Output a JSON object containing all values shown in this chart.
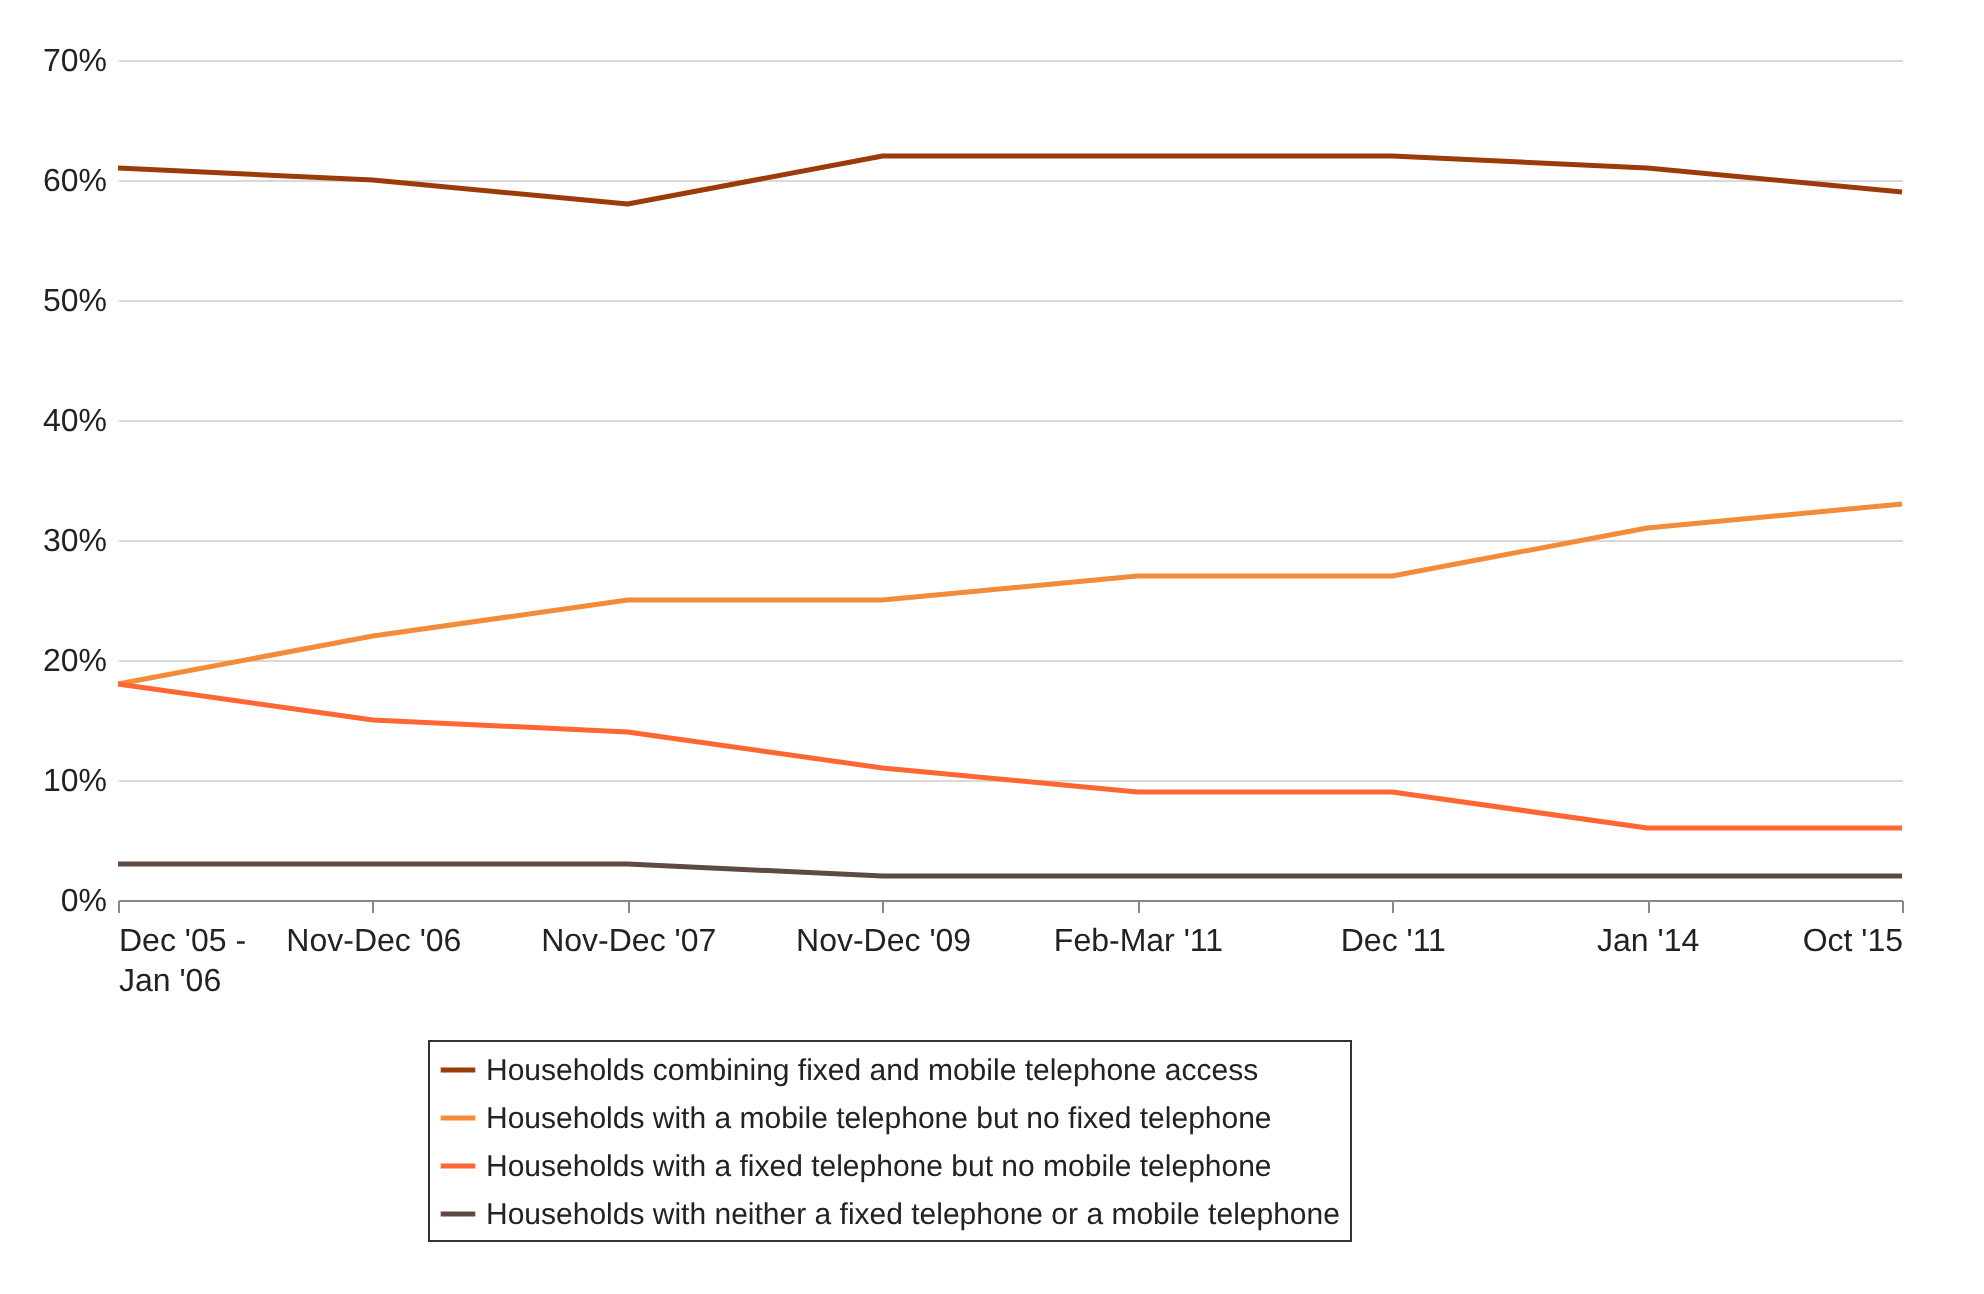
{
  "chart_data": {
    "type": "line",
    "categories": [
      "Dec '05 - Jan '06",
      "Nov-Dec '06",
      "Nov-Dec '07",
      "Nov-Dec '09",
      "Feb-Mar '11",
      "Dec '11",
      "Jan '14",
      "Oct '15"
    ],
    "series": [
      {
        "name": "Households combining fixed and mobile telephone access",
        "color": "#9c3b0a",
        "values": [
          61,
          60,
          58,
          62,
          62,
          62,
          61,
          59
        ]
      },
      {
        "name": "Households with a mobile telephone but no fixed telephone",
        "color": "#f28c3a",
        "values": [
          18,
          22,
          25,
          25,
          27,
          27,
          31,
          33
        ]
      },
      {
        "name": "Households with a fixed telephone but no mobile telephone",
        "color": "#ff6633",
        "values": [
          18,
          15,
          14,
          11,
          9,
          9,
          6,
          6
        ]
      },
      {
        "name": "Households with neither a fixed telephone or a mobile telephone",
        "color": "#5e4a42",
        "values": [
          3,
          3,
          3,
          2,
          2,
          2,
          2,
          2
        ]
      }
    ],
    "ylim": [
      0,
      70
    ],
    "yticks": [
      {
        "value": 0,
        "label": "0%"
      },
      {
        "value": 10,
        "label": "10%"
      },
      {
        "value": 20,
        "label": "20%"
      },
      {
        "value": 30,
        "label": "30%"
      },
      {
        "value": 40,
        "label": "40%"
      },
      {
        "value": 50,
        "label": "50%"
      },
      {
        "value": 60,
        "label": "60%"
      },
      {
        "value": 70,
        "label": "70%"
      }
    ],
    "grid": "y",
    "legend": "bottom",
    "marker": "none",
    "line_style": "solid"
  }
}
